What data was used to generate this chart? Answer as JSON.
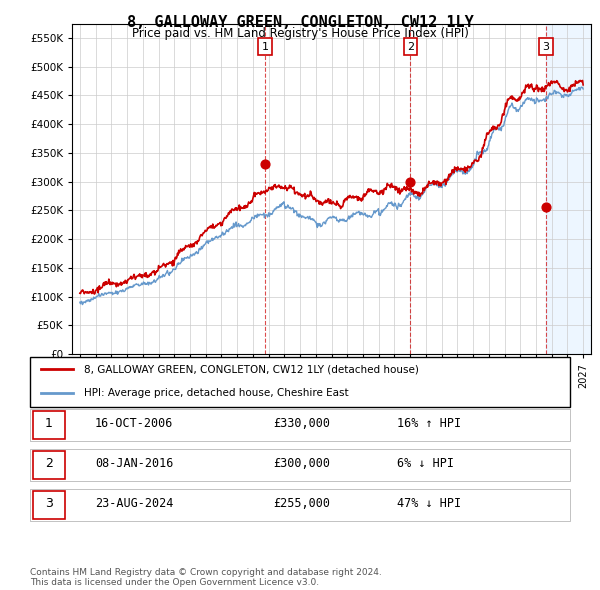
{
  "title": "8, GALLOWAY GREEN, CONGLETON, CW12 1LY",
  "subtitle": "Price paid vs. HM Land Registry's House Price Index (HPI)",
  "ylabel": "",
  "legend_line1": "8, GALLOWAY GREEN, CONGLETON, CW12 1LY (detached house)",
  "legend_line2": "HPI: Average price, detached house, Cheshire East",
  "footnote": "Contains HM Land Registry data © Crown copyright and database right 2024.\nThis data is licensed under the Open Government Licence v3.0.",
  "table": [
    {
      "num": "1",
      "date": "16-OCT-2006",
      "price": "£330,000",
      "hpi": "16% ↑ HPI"
    },
    {
      "num": "2",
      "date": "08-JAN-2016",
      "price": "£300,000",
      "hpi": "6% ↓ HPI"
    },
    {
      "num": "3",
      "date": "23-AUG-2024",
      "price": "£255,000",
      "hpi": "47% ↓ HPI"
    }
  ],
  "sale_years": [
    2006.79,
    2016.02,
    2024.64
  ],
  "sale_prices": [
    330000,
    300000,
    255000
  ],
  "ylim": [
    0,
    575000
  ],
  "yticks": [
    0,
    50000,
    100000,
    150000,
    200000,
    250000,
    300000,
    350000,
    400000,
    450000,
    500000,
    550000
  ],
  "red_color": "#cc0000",
  "blue_color": "#6699cc",
  "shade_color": "#ddeeff",
  "bg_color": "#f5f5f5",
  "grid_color": "#cccccc"
}
